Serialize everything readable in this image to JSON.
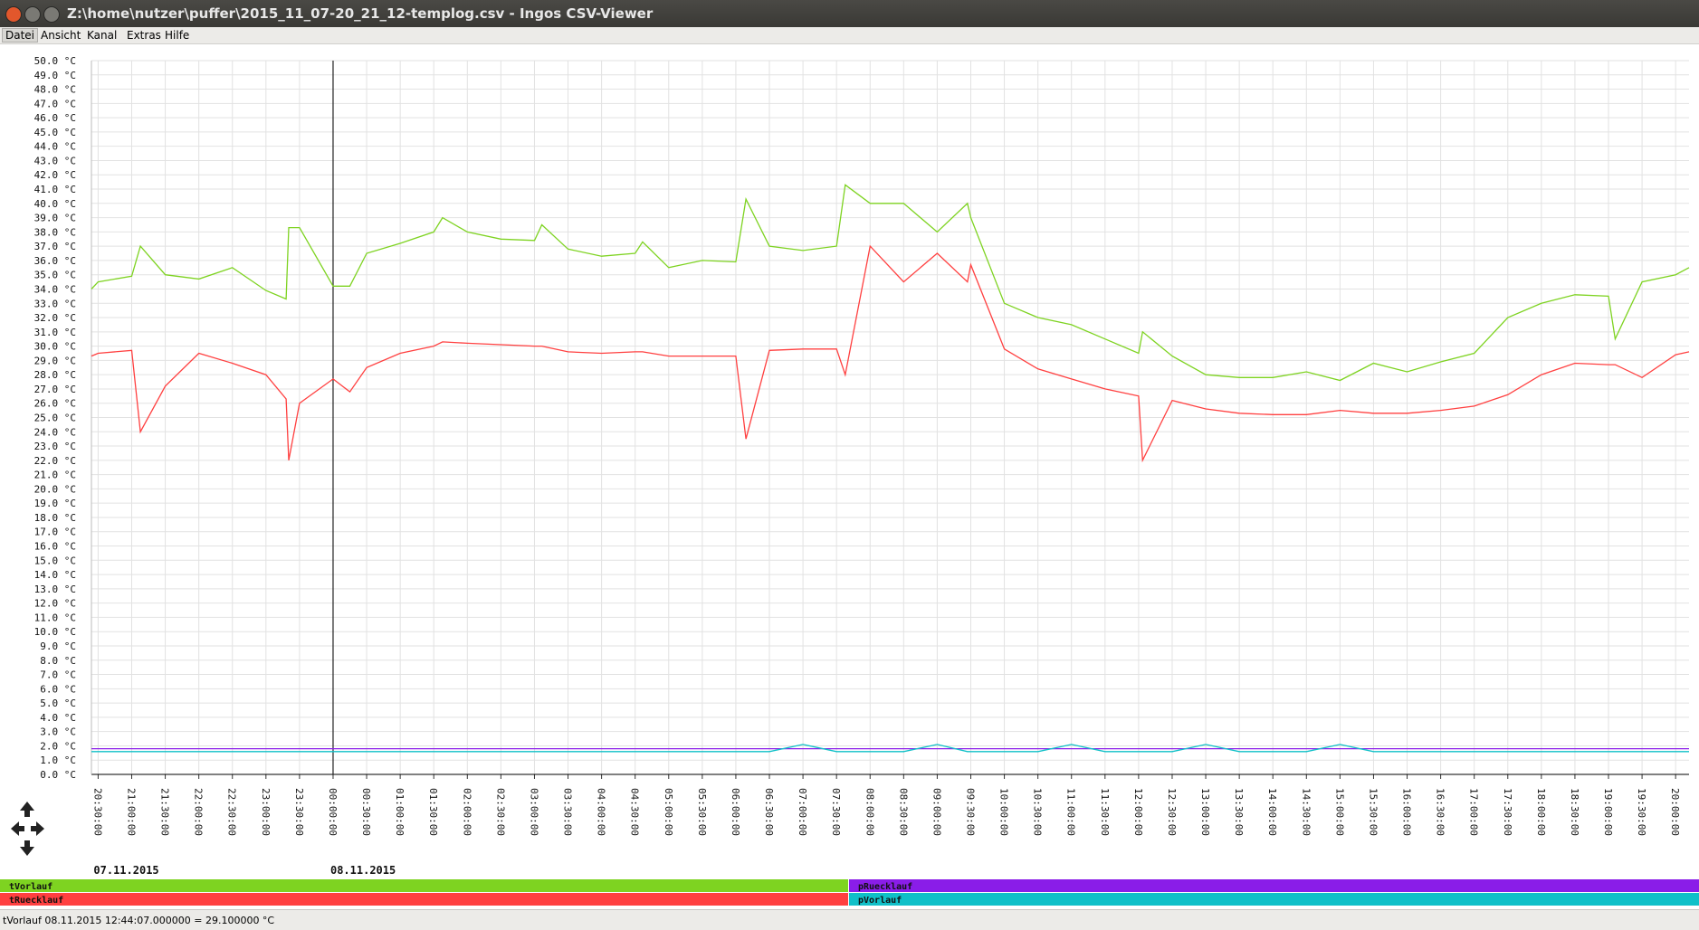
{
  "window": {
    "title": "Z:\\home\\nutzer\\puffer\\2015_11_07-20_21_12-templog.csv - Ingos CSV-Viewer"
  },
  "menu": [
    "Datei",
    "Ansicht",
    "Kanal",
    "Extras",
    "Hilfe"
  ],
  "status": "tVorlauf 08.11.2015 12:44:07.000000 = 29.100000 °C",
  "chart_data": {
    "type": "line",
    "grid": true,
    "date_labels": [
      "07.11.2015",
      "08.11.2015"
    ],
    "x": [
      -0.1,
      0,
      0.5,
      0.63,
      1,
      1.5,
      2,
      2.5,
      2.8,
      2.84,
      3,
      3.5,
      3.75,
      4,
      4.5,
      5,
      5.13,
      5.5,
      6,
      6.5,
      6.61,
      7,
      7.5,
      8,
      8.11,
      8.5,
      9,
      9.5,
      9.65,
      10,
      10.5,
      11,
      11.13,
      11.5,
      12,
      12.5,
      12.95,
      13,
      13.5,
      14,
      14.5,
      15,
      15.5,
      15.56,
      16,
      16.5,
      17,
      17.5,
      18,
      18.5,
      19,
      19.5,
      20,
      20.5,
      21,
      21.5,
      22,
      22.5,
      22.6,
      23,
      23.5,
      23.7
    ],
    "series": [
      {
        "name": "tVorlauf",
        "color": "#7ed321",
        "values": [
          34.0,
          34.5,
          34.9,
          37.0,
          35.0,
          34.7,
          35.5,
          33.9,
          33.3,
          38.3,
          38.3,
          34.2,
          34.2,
          36.5,
          37.2,
          38.0,
          39.0,
          38.0,
          37.5,
          37.4,
          38.5,
          36.8,
          36.3,
          36.5,
          37.3,
          35.5,
          36.0,
          35.9,
          40.3,
          37.0,
          36.7,
          37.0,
          41.3,
          40.0,
          40.0,
          38.0,
          40.0,
          39.0,
          33.0,
          32.0,
          31.5,
          30.5,
          29.5,
          31.0,
          29.3,
          28.0,
          27.8,
          27.8,
          28.2,
          27.6,
          28.8,
          28.2,
          28.9,
          29.5,
          32.0,
          33.0,
          33.6,
          33.5,
          30.5,
          34.5,
          35.0,
          35.5
        ]
      },
      {
        "name": "tRuecklauf",
        "color": "#ff4040",
        "values": [
          29.3,
          29.5,
          29.7,
          24.0,
          27.2,
          29.5,
          28.8,
          28.0,
          26.3,
          22.0,
          26.0,
          27.7,
          26.8,
          28.5,
          29.5,
          30.0,
          30.3,
          30.2,
          30.1,
          30.0,
          30.0,
          29.6,
          29.5,
          29.6,
          29.6,
          29.3,
          29.3,
          29.3,
          23.5,
          29.7,
          29.8,
          29.8,
          28.0,
          37.0,
          34.5,
          36.5,
          34.5,
          35.7,
          29.8,
          28.4,
          27.7,
          27.0,
          26.5,
          22.0,
          26.2,
          25.6,
          25.3,
          25.2,
          25.2,
          25.5,
          25.3,
          25.3,
          25.5,
          25.8,
          26.6,
          28.0,
          28.8,
          28.7,
          28.7,
          27.8,
          29.4,
          29.6
        ]
      },
      {
        "name": "pRuecklauf",
        "color": "#8a1de8",
        "values": [
          1.8,
          1.8,
          1.8,
          1.8,
          1.8,
          1.8,
          1.8,
          1.8,
          1.8,
          1.8,
          1.8,
          1.8,
          1.8,
          1.8,
          1.8,
          1.8,
          1.8,
          1.8,
          1.8,
          1.8,
          1.8,
          1.8,
          1.8,
          1.8,
          1.8,
          1.8,
          1.8,
          1.8,
          1.8,
          1.8,
          1.8,
          1.8,
          1.8,
          1.8,
          1.8,
          1.8,
          1.8,
          1.8,
          1.8,
          1.8,
          1.8,
          1.8,
          1.8,
          1.8,
          1.8,
          1.8,
          1.8,
          1.8,
          1.8,
          1.8,
          1.8,
          1.8,
          1.8,
          1.8,
          1.8,
          1.8,
          1.8,
          1.8,
          1.8,
          1.8,
          1.8,
          1.8
        ]
      },
      {
        "name": "pVorlauf",
        "color": "#10c0c8",
        "values": [
          1.6,
          1.6,
          1.6,
          1.6,
          1.6,
          1.6,
          1.6,
          1.6,
          1.6,
          1.6,
          1.6,
          1.6,
          1.6,
          1.6,
          1.6,
          1.6,
          1.6,
          1.6,
          1.6,
          1.6,
          1.6,
          1.6,
          1.6,
          1.6,
          1.6,
          1.6,
          1.6,
          1.6,
          1.6,
          1.6,
          2.1,
          1.6,
          1.6,
          1.6,
          1.6,
          2.1,
          1.6,
          1.6,
          1.6,
          1.6,
          2.1,
          1.6,
          1.6,
          1.6,
          1.6,
          2.1,
          1.6,
          1.6,
          1.6,
          2.1,
          1.6,
          1.6,
          1.6,
          1.6,
          1.6,
          1.6,
          1.6,
          1.6,
          1.6,
          1.6,
          1.6,
          1.6
        ]
      }
    ],
    "xlim": [
      -0.1,
      23.7
    ],
    "xticks": [
      {
        "value": 0,
        "label": "20:30:00"
      },
      {
        "value": 0.5,
        "label": "21:00:00"
      },
      {
        "value": 1,
        "label": "21:30:00"
      },
      {
        "value": 1.5,
        "label": "22:00:00"
      },
      {
        "value": 2,
        "label": "22:30:00"
      },
      {
        "value": 2.5,
        "label": "23:00:00"
      },
      {
        "value": 3,
        "label": "23:30:00"
      },
      {
        "value": 3.5,
        "label": "00:00:00"
      },
      {
        "value": 4,
        "label": "00:30:00"
      },
      {
        "value": 4.5,
        "label": "01:00:00"
      },
      {
        "value": 5,
        "label": "01:30:00"
      },
      {
        "value": 5.5,
        "label": "02:00:00"
      },
      {
        "value": 6,
        "label": "02:30:00"
      },
      {
        "value": 6.5,
        "label": "03:00:00"
      },
      {
        "value": 7,
        "label": "03:30:00"
      },
      {
        "value": 7.5,
        "label": "04:00:00"
      },
      {
        "value": 8,
        "label": "04:30:00"
      },
      {
        "value": 8.5,
        "label": "05:00:00"
      },
      {
        "value": 9,
        "label": "05:30:00"
      },
      {
        "value": 9.5,
        "label": "06:00:00"
      },
      {
        "value": 10,
        "label": "06:30:00"
      },
      {
        "value": 10.5,
        "label": "07:00:00"
      },
      {
        "value": 11,
        "label": "07:30:00"
      },
      {
        "value": 11.5,
        "label": "08:00:00"
      },
      {
        "value": 12,
        "label": "08:30:00"
      },
      {
        "value": 12.5,
        "label": "09:00:00"
      },
      {
        "value": 13,
        "label": "09:30:00"
      },
      {
        "value": 13.5,
        "label": "10:00:00"
      },
      {
        "value": 14,
        "label": "10:30:00"
      },
      {
        "value": 14.5,
        "label": "11:00:00"
      },
      {
        "value": 15,
        "label": "11:30:00"
      },
      {
        "value": 15.5,
        "label": "12:00:00"
      },
      {
        "value": 16,
        "label": "12:30:00"
      },
      {
        "value": 16.5,
        "label": "13:00:00"
      },
      {
        "value": 17,
        "label": "13:30:00"
      },
      {
        "value": 17.5,
        "label": "14:00:00"
      },
      {
        "value": 18,
        "label": "14:30:00"
      },
      {
        "value": 18.5,
        "label": "15:00:00"
      },
      {
        "value": 19,
        "label": "15:30:00"
      },
      {
        "value": 19.5,
        "label": "16:00:00"
      },
      {
        "value": 20,
        "label": "16:30:00"
      },
      {
        "value": 20.5,
        "label": "17:00:00"
      },
      {
        "value": 21,
        "label": "17:30:00"
      },
      {
        "value": 21.5,
        "label": "18:00:00"
      },
      {
        "value": 22,
        "label": "18:30:00"
      },
      {
        "value": 22.5,
        "label": "19:00:00"
      },
      {
        "value": 23,
        "label": "19:30:00"
      },
      {
        "value": 23.5,
        "label": "20:00:00"
      }
    ],
    "ylim": [
      0,
      50
    ],
    "yticks": [
      {
        "value": 0,
        "label": "0.0 °C"
      },
      {
        "value": 1,
        "label": "1.0 °C"
      },
      {
        "value": 2,
        "label": "2.0 °C"
      },
      {
        "value": 3,
        "label": "3.0 °C"
      },
      {
        "value": 4,
        "label": "4.0 °C"
      },
      {
        "value": 5,
        "label": "5.0 °C"
      },
      {
        "value": 6,
        "label": "6.0 °C"
      },
      {
        "value": 7,
        "label": "7.0 °C"
      },
      {
        "value": 8,
        "label": "8.0 °C"
      },
      {
        "value": 9,
        "label": "9.0 °C"
      },
      {
        "value": 10,
        "label": "10.0 °C"
      },
      {
        "value": 11,
        "label": "11.0 °C"
      },
      {
        "value": 12,
        "label": "12.0 °C"
      },
      {
        "value": 13,
        "label": "13.0 °C"
      },
      {
        "value": 14,
        "label": "14.0 °C"
      },
      {
        "value": 15,
        "label": "15.0 °C"
      },
      {
        "value": 16,
        "label": "16.0 °C"
      },
      {
        "value": 17,
        "label": "17.0 °C"
      },
      {
        "value": 18,
        "label": "18.0 °C"
      },
      {
        "value": 19,
        "label": "19.0 °C"
      },
      {
        "value": 20,
        "label": "20.0 °C"
      },
      {
        "value": 21,
        "label": "21.0 °C"
      },
      {
        "value": 22,
        "label": "22.0 °C"
      },
      {
        "value": 23,
        "label": "23.0 °C"
      },
      {
        "value": 24,
        "label": "24.0 °C"
      },
      {
        "value": 25,
        "label": "25.0 °C"
      },
      {
        "value": 26,
        "label": "26.0 °C"
      },
      {
        "value": 27,
        "label": "27.0 °C"
      },
      {
        "value": 28,
        "label": "28.0 °C"
      },
      {
        "value": 29,
        "label": "29.0 °C"
      },
      {
        "value": 30,
        "label": "30.0 °C"
      },
      {
        "value": 31,
        "label": "31.0 °C"
      },
      {
        "value": 32,
        "label": "32.0 °C"
      },
      {
        "value": 33,
        "label": "33.0 °C"
      },
      {
        "value": 34,
        "label": "34.0 °C"
      },
      {
        "value": 35,
        "label": "35.0 °C"
      },
      {
        "value": 36,
        "label": "36.0 °C"
      },
      {
        "value": 37,
        "label": "37.0 °C"
      },
      {
        "value": 38,
        "label": "38.0 °C"
      },
      {
        "value": 39,
        "label": "39.0 °C"
      },
      {
        "value": 40,
        "label": "40.0 °C"
      },
      {
        "value": 41,
        "label": "41.0 °C"
      },
      {
        "value": 42,
        "label": "42.0 °C"
      },
      {
        "value": 43,
        "label": "43.0 °C"
      },
      {
        "value": 44,
        "label": "44.0 °C"
      },
      {
        "value": 45,
        "label": "45.0 °C"
      },
      {
        "value": 46,
        "label": "46.0 °C"
      },
      {
        "value": 47,
        "label": "47.0 °C"
      },
      {
        "value": 48,
        "label": "48.0 °C"
      },
      {
        "value": 49,
        "label": "49.0 °C"
      },
      {
        "value": 50,
        "label": "50.0 °C"
      }
    ]
  }
}
